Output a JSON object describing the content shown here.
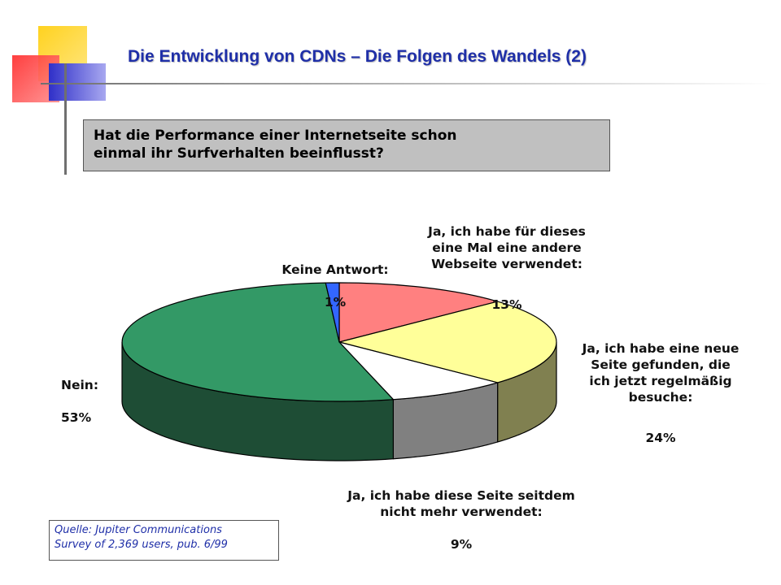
{
  "title": "Die Entwicklung von CDNs – Die Folgen des Wandels (2)",
  "question": "Hat die Performance  einer Internetseite schon\neinmal ihr Surfverhalten beeinflusst?",
  "source": {
    "line1": "Quelle: Jupiter Communications",
    "line2": "Survey of 2,369 users, pub. 6/99"
  },
  "colors": {
    "title": "#1f2fa8",
    "accent_yellow": "#ffd21f",
    "accent_red": "#ff3b3b",
    "accent_blue": "#3333cc"
  },
  "chart_data": {
    "type": "pie",
    "style": "3d",
    "unit": "%",
    "slices": [
      {
        "name": "Ja, ich habe für dieses eine Mal eine andere Webseite verwendet:",
        "value": 13,
        "label": "Ja, ich habe für dieses\neine Mal eine andere\nWebseite verwendet:",
        "value_label": "13%",
        "color": "#ff8080",
        "side_color": "#b85a5a"
      },
      {
        "name": "Ja, ich habe eine neue Seite gefunden, die ich jetzt regelmäßig besuche:",
        "value": 24,
        "label": "Ja, ich habe eine neue\nSeite gefunden, die\nich jetzt regelmäßig\nbesuche:",
        "value_label": "24%",
        "color": "#ffff99",
        "side_color": "#808050"
      },
      {
        "name": "Ja, ich habe diese Seite seitdem nicht mehr verwendet:",
        "value": 9,
        "label": "Ja, ich habe diese Seite seitdem\nnicht mehr verwendet:",
        "value_label": "9%",
        "color": "#ffffff",
        "side_color": "#808080"
      },
      {
        "name": "Nein:",
        "value": 53,
        "label": "Nein:",
        "value_label": "53%",
        "color": "#339966",
        "side_color": "#1e4d35"
      },
      {
        "name": "Keine Antwort:",
        "value": 1,
        "label": "Keine Antwort:",
        "value_label": "1%",
        "color": "#3366ff",
        "side_color": "#1f3fa0"
      }
    ]
  }
}
